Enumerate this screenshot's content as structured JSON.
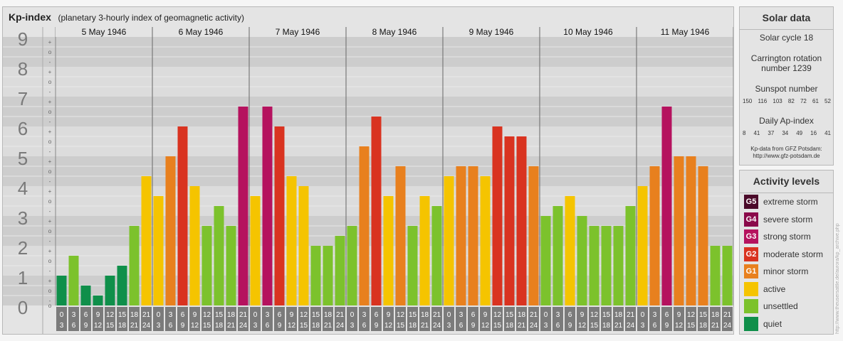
{
  "header": {
    "title": "Kp-index",
    "subtitle": "(planetary 3-hourly index of geomagnetic activity)"
  },
  "solar": {
    "title": "Solar data",
    "cycle": "Solar cycle 18",
    "carrington_line1": "Carrington rotation",
    "carrington_line2": "number 1239",
    "sunspot_label": "Sunspot number",
    "sunspot_values": [
      "150",
      "116",
      "103",
      "82",
      "72",
      "61",
      "52"
    ],
    "ap_label": "Daily Ap-index",
    "ap_values": [
      "8",
      "41",
      "37",
      "34",
      "49",
      "16",
      "41"
    ],
    "source_line1": "Kp-data from GFZ Potsdam:",
    "source_line2": "http://www.gfz-potsdam.de"
  },
  "activity": {
    "title": "Activity levels",
    "levels": [
      {
        "code": "G5",
        "label": "extreme storm",
        "color": "#4b0a2a"
      },
      {
        "code": "G4",
        "label": "severe storm",
        "color": "#8a0a4a"
      },
      {
        "code": "G3",
        "label": "strong storm",
        "color": "#b5125e"
      },
      {
        "code": "G2",
        "label": "moderate storm",
        "color": "#d93320"
      },
      {
        "code": "G1",
        "label": "minor storm",
        "color": "#e8801e"
      },
      {
        "code": "",
        "label": "active",
        "color": "#f5c400"
      },
      {
        "code": "",
        "label": "unsettled",
        "color": "#7cc22c"
      },
      {
        "code": "",
        "label": "quiet",
        "color": "#0f8f4a"
      }
    ]
  },
  "watermark": "http://www.theusersattle.de/aurora/kp_archive.php",
  "chart_data": {
    "type": "bar",
    "ylim": [
      0,
      9
    ],
    "y_ticks": [
      "0",
      "1",
      "2",
      "3",
      "4",
      "5",
      "6",
      "7",
      "8",
      "9"
    ],
    "minor_marks": [
      "+",
      "o",
      "-"
    ],
    "days": [
      "5 May 1946",
      "6 May 1946",
      "7 May 1946",
      "8 May 1946",
      "9 May 1946",
      "10 May 1946",
      "11 May 1946"
    ],
    "hour_start": [
      "0",
      "3",
      "6",
      "9",
      "12",
      "15",
      "18",
      "21"
    ],
    "hour_end": [
      "3",
      "6",
      "9",
      "12",
      "15",
      "18",
      "21",
      "24"
    ],
    "values": [
      1.0,
      1.667,
      0.667,
      0.333,
      1.0,
      1.333,
      2.667,
      4.333,
      3.667,
      5.0,
      6.0,
      4.0,
      2.667,
      3.333,
      2.667,
      6.667,
      3.667,
      6.667,
      6.0,
      4.333,
      4.0,
      2.0,
      2.0,
      2.333,
      2.667,
      5.333,
      6.333,
      3.667,
      4.667,
      2.667,
      3.667,
      3.333,
      4.333,
      4.667,
      4.667,
      4.333,
      6.0,
      5.667,
      5.667,
      4.667,
      3.0,
      3.333,
      3.667,
      3.0,
      2.667,
      2.667,
      2.667,
      3.333,
      4.0,
      4.667,
      6.667,
      5.0,
      5.0,
      4.667,
      2.0,
      2.0
    ]
  }
}
